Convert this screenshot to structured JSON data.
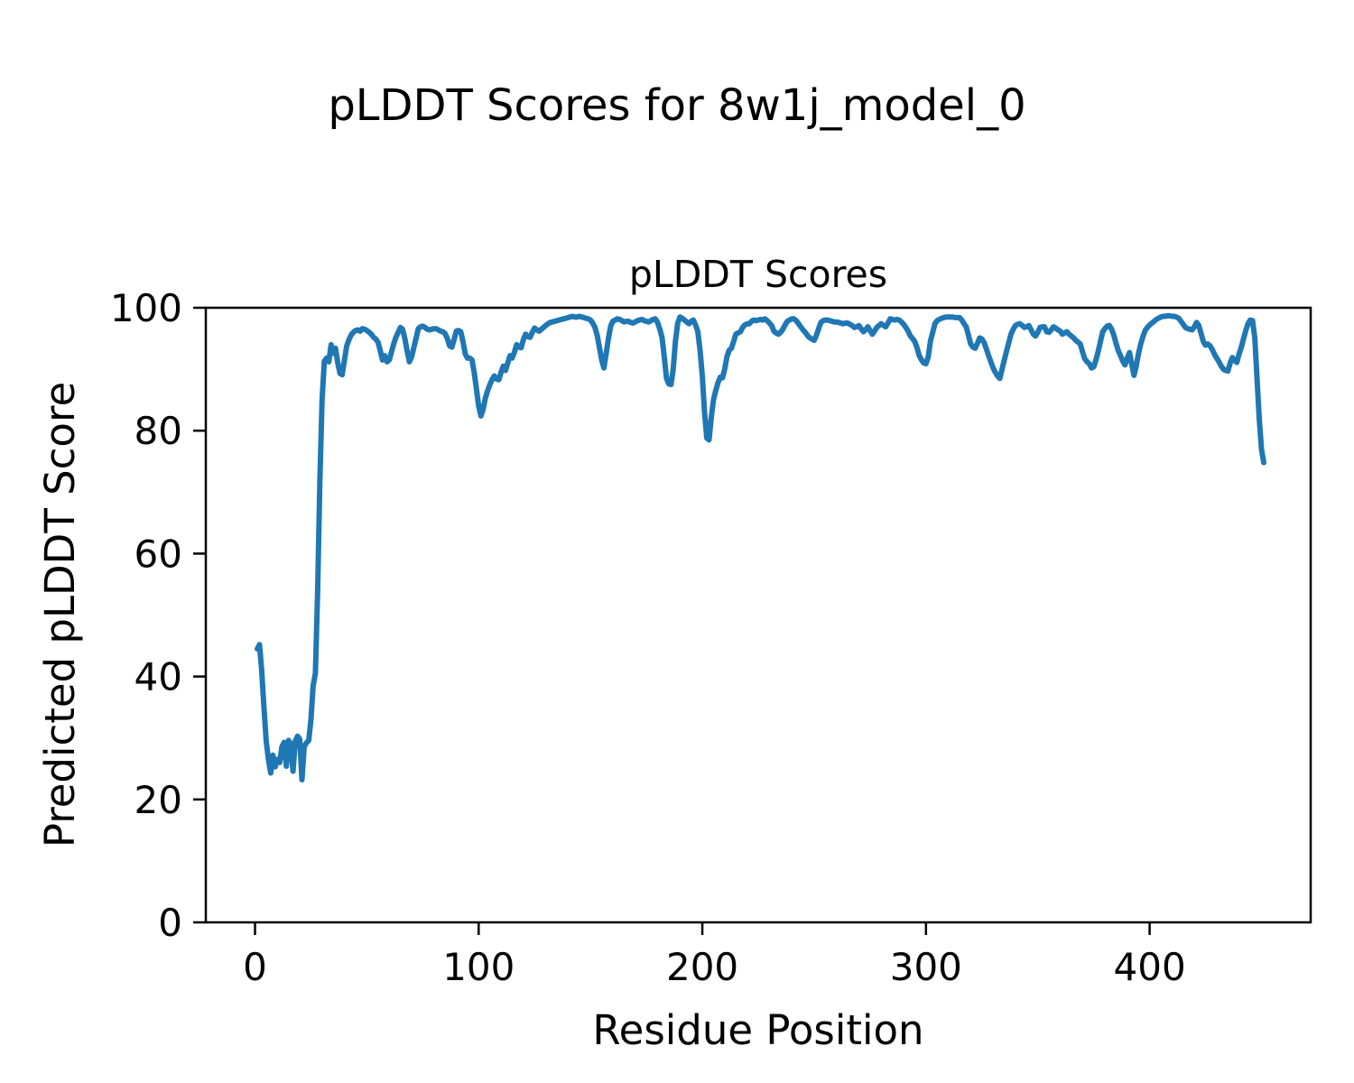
{
  "figure": {
    "suptitle": "pLDDT Scores for 8w1j_model_0",
    "background_color": "#ffffff",
    "text_color": "#000000"
  },
  "chart_data": {
    "type": "line",
    "title": "pLDDT Scores",
    "xlabel": "Residue Position",
    "ylabel": "Predicted pLDDT Score",
    "xlim": [
      -22,
      472
    ],
    "ylim": [
      0,
      100
    ],
    "xticks": [
      0,
      100,
      200,
      300,
      400
    ],
    "yticks": [
      0,
      20,
      40,
      60,
      80,
      100
    ],
    "grid": false,
    "legend": "none",
    "line_color": "#1f77b4",
    "series": [
      {
        "name": "pLDDT",
        "x_start": 1,
        "x_step": 1,
        "values": [
          44.5,
          45.2,
          41.0,
          35.0,
          29.5,
          26.5,
          24.3,
          27.2,
          25.3,
          26.5,
          26.0,
          28.5,
          29.3,
          25.4,
          29.6,
          29.0,
          24.6,
          29.5,
          30.3,
          29.8,
          23.2,
          28.6,
          29.2,
          29.6,
          33.0,
          38.5,
          40.5,
          54.0,
          72.0,
          85.0,
          91.3,
          91.8,
          91.2,
          94.0,
          92.6,
          93.4,
          91.0,
          89.3,
          89.1,
          91.5,
          93.8,
          94.8,
          95.6,
          96.0,
          96.3,
          96.4,
          96.2,
          96.6,
          96.5,
          96.3,
          96.0,
          95.7,
          95.2,
          94.9,
          94.4,
          93.0,
          91.5,
          92.2,
          91.2,
          91.5,
          92.8,
          94.1,
          95.2,
          96.0,
          96.8,
          96.5,
          95.0,
          93.0,
          91.2,
          92.0,
          93.5,
          95.0,
          96.6,
          96.9,
          97.0,
          96.8,
          96.5,
          96.4,
          96.5,
          96.6,
          96.6,
          96.4,
          96.2,
          96.1,
          95.8,
          95.0,
          93.8,
          93.6,
          94.8,
          96.2,
          96.3,
          96.1,
          94.5,
          92.5,
          91.8,
          91.8,
          91.5,
          89.5,
          86.8,
          84.0,
          82.4,
          83.5,
          85.3,
          86.5,
          87.5,
          88.3,
          88.9,
          88.4,
          88.3,
          89.5,
          90.5,
          89.8,
          91.0,
          92.2,
          91.8,
          92.8,
          94.0,
          93.6,
          93.5,
          94.8,
          95.7,
          95.3,
          95.2,
          96.0,
          96.7,
          96.4,
          96.2,
          96.5,
          96.8,
          97.1,
          97.4,
          97.6,
          97.7,
          97.8,
          97.9,
          98.0,
          98.1,
          98.2,
          98.3,
          98.4,
          98.5,
          98.6,
          98.5,
          98.5,
          98.6,
          98.5,
          98.4,
          98.3,
          98.2,
          98.0,
          97.5,
          96.8,
          95.5,
          93.5,
          91.5,
          90.2,
          92.5,
          95.0,
          97.0,
          97.8,
          98.0,
          98.2,
          98.1,
          97.9,
          97.7,
          97.8,
          97.8,
          97.6,
          97.5,
          97.7,
          97.9,
          98.0,
          98.1,
          97.9,
          97.8,
          97.7,
          97.9,
          98.1,
          98.2,
          97.6,
          96.5,
          95.1,
          92.0,
          88.5,
          87.6,
          87.5,
          90.0,
          94.6,
          97.5,
          98.5,
          98.3,
          98.0,
          97.7,
          97.4,
          97.8,
          98.0,
          97.2,
          96.1,
          93.0,
          88.8,
          83.0,
          78.8,
          78.5,
          82.2,
          85.0,
          86.5,
          87.8,
          88.7,
          88.6,
          90.0,
          92.0,
          93.1,
          93.4,
          94.5,
          95.7,
          95.9,
          96.1,
          96.8,
          97.2,
          97.4,
          97.4,
          97.8,
          98.0,
          97.9,
          98.0,
          98.1,
          98.0,
          98.2,
          97.9,
          97.5,
          97.1,
          96.2,
          95.9,
          95.7,
          96.0,
          96.5,
          97.2,
          97.8,
          98.0,
          98.2,
          98.2,
          97.9,
          97.4,
          96.9,
          96.4,
          96.0,
          95.5,
          95.1,
          94.9,
          94.7,
          95.5,
          96.6,
          97.6,
          97.9,
          98.0,
          98.0,
          97.9,
          97.8,
          97.7,
          97.7,
          97.6,
          97.5,
          97.4,
          97.5,
          97.5,
          97.3,
          97.1,
          96.8,
          96.9,
          97.1,
          96.6,
          96.1,
          96.4,
          96.9,
          96.3,
          95.7,
          96.2,
          96.8,
          97.1,
          97.4,
          97.1,
          96.9,
          97.5,
          98.2,
          98.1,
          98.0,
          98.1,
          98.0,
          97.7,
          97.3,
          96.8,
          96.2,
          95.4,
          95.0,
          94.5,
          93.5,
          92.2,
          91.5,
          91.0,
          90.9,
          92.0,
          94.6,
          96.0,
          97.4,
          97.9,
          98.1,
          98.3,
          98.4,
          98.5,
          98.5,
          98.5,
          98.5,
          98.4,
          98.4,
          98.4,
          98.0,
          97.4,
          96.9,
          95.5,
          94.1,
          93.6,
          93.4,
          94.2,
          95.1,
          94.9,
          94.3,
          93.3,
          92.2,
          91.2,
          90.2,
          89.5,
          88.9,
          88.5,
          90.0,
          91.5,
          92.9,
          94.3,
          95.7,
          96.5,
          97.1,
          97.3,
          97.4,
          97.1,
          96.8,
          96.9,
          97.1,
          96.4,
          95.7,
          95.4,
          96.0,
          96.8,
          96.9,
          96.9,
          96.1,
          96.0,
          96.4,
          96.9,
          96.7,
          96.4,
          96.2,
          95.7,
          95.9,
          96.1,
          95.7,
          95.4,
          95.1,
          94.7,
          94.4,
          94.1,
          92.8,
          91.7,
          91.2,
          90.9,
          90.2,
          90.4,
          91.5,
          92.9,
          94.5,
          96.1,
          96.6,
          97.0,
          97.1,
          96.5,
          95.5,
          94.2,
          93.0,
          92.2,
          91.3,
          90.7,
          91.8,
          92.7,
          90.8,
          89.0,
          90.5,
          92.5,
          94.1,
          95.3,
          96.3,
          96.8,
          97.2,
          97.5,
          97.8,
          98.1,
          98.3,
          98.5,
          98.6,
          98.6,
          98.7,
          98.7,
          98.6,
          98.6,
          98.5,
          98.3,
          97.8,
          97.3,
          96.8,
          96.6,
          96.5,
          96.4,
          96.9,
          97.6,
          97.1,
          95.8,
          94.5,
          93.9,
          94.1,
          93.8,
          93.2,
          92.4,
          91.8,
          91.2,
          90.5,
          90.0,
          89.8,
          89.7,
          91.0,
          91.9,
          91.4,
          91.1,
          92.5,
          93.6,
          95.0,
          96.3,
          97.4,
          98.0,
          97.9,
          95.1,
          88.7,
          82.0,
          77.0,
          74.8
        ]
      }
    ]
  }
}
